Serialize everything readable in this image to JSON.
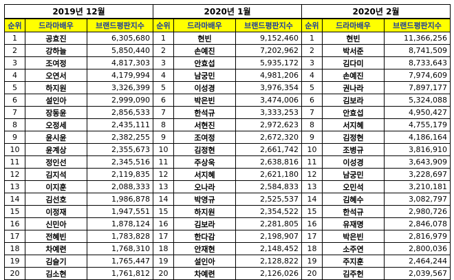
{
  "header": {
    "rank": "순위",
    "actor": "드라마배우",
    "index": "브랜드평판지수"
  },
  "blocks": [
    {
      "period": "2019년 12월",
      "rows": [
        {
          "rank": "1",
          "name": "공효진",
          "score": "6,305,680"
        },
        {
          "rank": "2",
          "name": "강하늘",
          "score": "5,850,440"
        },
        {
          "rank": "3",
          "name": "조여정",
          "score": "4,817,303"
        },
        {
          "rank": "4",
          "name": "오연서",
          "score": "4,179,994"
        },
        {
          "rank": "5",
          "name": "하지원",
          "score": "3,326,399"
        },
        {
          "rank": "6",
          "name": "설인아",
          "score": "2,999,090"
        },
        {
          "rank": "7",
          "name": "장동윤",
          "score": "2,856,533"
        },
        {
          "rank": "8",
          "name": "오정세",
          "score": "2,435,111"
        },
        {
          "rank": "9",
          "name": "윤시윤",
          "score": "2,382,255"
        },
        {
          "rank": "10",
          "name": "윤계상",
          "score": "2,355,673"
        },
        {
          "rank": "11",
          "name": "정인선",
          "score": "2,345,516"
        },
        {
          "rank": "12",
          "name": "김지석",
          "score": "2,119,835"
        },
        {
          "rank": "13",
          "name": "이지훈",
          "score": "2,088,333"
        },
        {
          "rank": "14",
          "name": "김선호",
          "score": "1,986,878"
        },
        {
          "rank": "15",
          "name": "이정재",
          "score": "1,947,551"
        },
        {
          "rank": "16",
          "name": "신민아",
          "score": "1,878,124"
        },
        {
          "rank": "17",
          "name": "전혜빈",
          "score": "1,783,828"
        },
        {
          "rank": "18",
          "name": "차예련",
          "score": "1,768,310"
        },
        {
          "rank": "19",
          "name": "김슬기",
          "score": "1,765,447"
        },
        {
          "rank": "20",
          "name": "김소현",
          "score": "1,761,812"
        }
      ]
    },
    {
      "period": "2020년 1월",
      "rows": [
        {
          "rank": "1",
          "name": "현빈",
          "score": "9,152,460"
        },
        {
          "rank": "2",
          "name": "손예진",
          "score": "7,202,962"
        },
        {
          "rank": "3",
          "name": "안효섭",
          "score": "5,935,172"
        },
        {
          "rank": "4",
          "name": "남궁민",
          "score": "4,981,206"
        },
        {
          "rank": "5",
          "name": "이성경",
          "score": "3,976,354"
        },
        {
          "rank": "6",
          "name": "박은빈",
          "score": "3,474,006"
        },
        {
          "rank": "7",
          "name": "한석규",
          "score": "3,333,253"
        },
        {
          "rank": "8",
          "name": "서현진",
          "score": "2,972,623"
        },
        {
          "rank": "9",
          "name": "조여정",
          "score": "2,672,320"
        },
        {
          "rank": "10",
          "name": "김정현",
          "score": "2,661,742"
        },
        {
          "rank": "11",
          "name": "주상욱",
          "score": "2,638,816"
        },
        {
          "rank": "12",
          "name": "서지혜",
          "score": "2,621,180"
        },
        {
          "rank": "13",
          "name": "오나라",
          "score": "2,584,833"
        },
        {
          "rank": "14",
          "name": "박영규",
          "score": "2,525,537"
        },
        {
          "rank": "15",
          "name": "하지원",
          "score": "2,354,522"
        },
        {
          "rank": "16",
          "name": "김보라",
          "score": "2,281,805"
        },
        {
          "rank": "17",
          "name": "한다감",
          "score": "2,198,907"
        },
        {
          "rank": "18",
          "name": "안재현",
          "score": "2,148,452"
        },
        {
          "rank": "19",
          "name": "설인아",
          "score": "2,128,822"
        },
        {
          "rank": "20",
          "name": "차예련",
          "score": "2,126,026"
        }
      ]
    },
    {
      "period": "2020년 2월",
      "rows": [
        {
          "rank": "1",
          "name": "현빈",
          "score": "11,366,256"
        },
        {
          "rank": "2",
          "name": "박서준",
          "score": "8,741,509"
        },
        {
          "rank": "3",
          "name": "김다미",
          "score": "8,733,643"
        },
        {
          "rank": "4",
          "name": "손예진",
          "score": "7,974,609"
        },
        {
          "rank": "5",
          "name": "권나라",
          "score": "7,897,177"
        },
        {
          "rank": "6",
          "name": "김보라",
          "score": "5,324,088"
        },
        {
          "rank": "7",
          "name": "안효섭",
          "score": "4,950,427"
        },
        {
          "rank": "8",
          "name": "서지혜",
          "score": "4,755,179"
        },
        {
          "rank": "9",
          "name": "김정현",
          "score": "4,186,164"
        },
        {
          "rank": "10",
          "name": "조병규",
          "score": "3,816,910"
        },
        {
          "rank": "11",
          "name": "이성경",
          "score": "3,643,909"
        },
        {
          "rank": "12",
          "name": "남궁민",
          "score": "3,228,697"
        },
        {
          "rank": "13",
          "name": "오민석",
          "score": "3,210,181"
        },
        {
          "rank": "14",
          "name": "김혜수",
          "score": "3,082,797"
        },
        {
          "rank": "15",
          "name": "한석규",
          "score": "2,980,726"
        },
        {
          "rank": "16",
          "name": "유재명",
          "score": "2,846,078"
        },
        {
          "rank": "17",
          "name": "박은빈",
          "score": "2,816,979"
        },
        {
          "rank": "18",
          "name": "소주연",
          "score": "2,800,036"
        },
        {
          "rank": "19",
          "name": "주지훈",
          "score": "2,464,244"
        },
        {
          "rank": "20",
          "name": "김주헌",
          "score": "2,039,567"
        }
      ]
    }
  ]
}
